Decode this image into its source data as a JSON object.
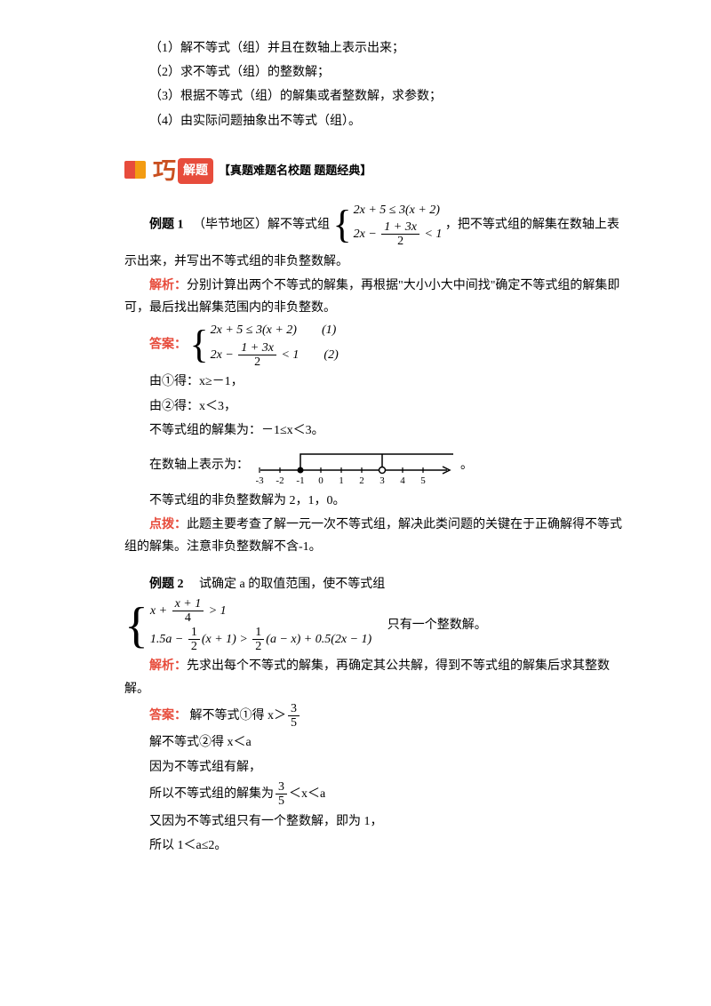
{
  "intro": {
    "i1": "（1）解不等式（组）并且在数轴上表示出来；",
    "i2": "（2）求不等式（组）的整数解；",
    "i3": "（3）根据不等式（组）的解集或者整数解，求参数；",
    "i4": "（4）由实际问题抽象出不等式（组）。"
  },
  "header": {
    "qiao": "巧",
    "jieti": "解题",
    "sub": "【真题难题名校题  题题经典】"
  },
  "ex1": {
    "title": "例题 1",
    "pre": "　（毕节地区）解不等式组",
    "sys_row1": "2x + 5 ≤ 3(x + 2)",
    "sys_row2_a": "2x − ",
    "sys_row2_frac_num": "1 + 3x",
    "sys_row2_frac_den": "2",
    "sys_row2_b": " < 1",
    "post": "，把不等式组的解集在数轴上表",
    "post2": "示出来，并写出不等式组的非负整数解。",
    "jiexi_label": "解析：",
    "jiexi": "分别计算出两个不等式的解集，再根据\"大小小大中间找\"确定不等式组的解集即可，最后找出解集范围内的非负整数。",
    "daan_label": "答案：",
    "ans_row1": "2x + 5 ≤ 3(x + 2)　　(1)",
    "ans_row2_a": "2x − ",
    "ans_row2_frac_num": "1 + 3x",
    "ans_row2_frac_den": "2",
    "ans_row2_b": " < 1　　(2)",
    "step1": "由①得：x≥－1，",
    "step2": "由②得：x＜3，",
    "step3": "不等式组的解集为：－1≤x＜3。",
    "nl_label": "在数轴上表示为：",
    "nl_end": "。",
    "step5": "不等式组的非负整数解为 2，1，0。",
    "dianbo_label": "点拨：",
    "dianbo": "此题主要考查了解一元一次不等式组，解决此类问题的关键在于正确解得不等式组的解集。注意非负整数解不含-1。"
  },
  "numberline": {
    "ticks": [
      -3,
      -2,
      -1,
      0,
      1,
      2,
      3,
      4,
      5
    ],
    "filled_at": -1,
    "open_at": 3,
    "axis_color": "#000",
    "bracket_top": true
  },
  "ex2": {
    "title": "例题 2",
    "pre": "　试确定 a 的取值范围，使不等式组",
    "sys_row1_a": "x + ",
    "sys_row1_num": "x + 1",
    "sys_row1_den": "4",
    "sys_row1_b": " > 1",
    "sys_row2_a": "1.5a − ",
    "sys_row2_num1": "1",
    "sys_row2_den1": "2",
    "sys_row2_mid": "(x + 1) > ",
    "sys_row2_num2": "1",
    "sys_row2_den2": "2",
    "sys_row2_b": "(a − x) + 0.5(2x − 1)",
    "post": "　只有一个整数解。",
    "jiexi_label": "解析：",
    "jiexi": "先求出每个不等式的解集，再确定其公共解，得到不等式组的解集后求其整数解。",
    "daan_label": "答案：",
    "s1_a": "解不等式①得 x＞",
    "s1_num": "3",
    "s1_den": "5",
    "s2": "解不等式②得 x＜a",
    "s3": "因为不等式组有解，",
    "s4_a": "所以不等式组的解集为",
    "s4_num": "3",
    "s4_den": "5",
    "s4_b": "＜x＜a",
    "s5": "又因为不等式组只有一个整数解，即为 1，",
    "s6": "所以 1＜a≤2。"
  }
}
